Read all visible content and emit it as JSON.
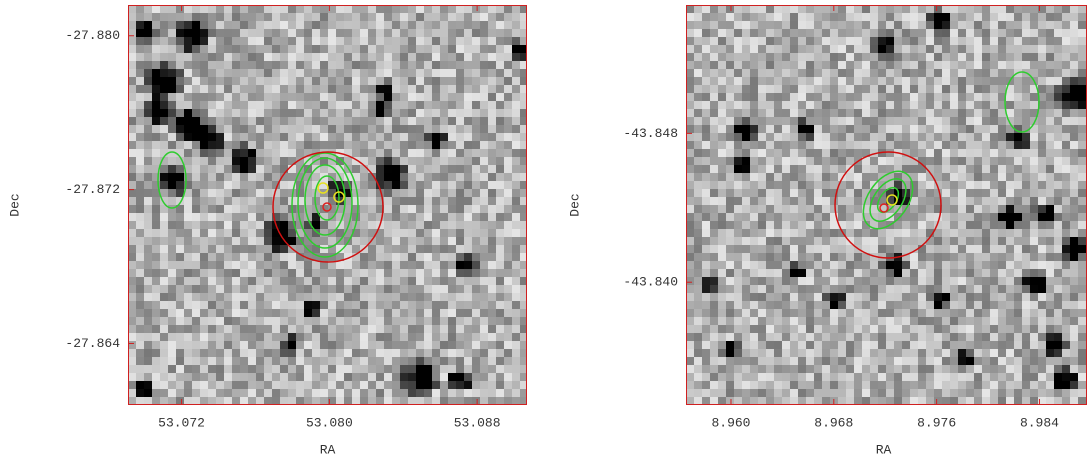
{
  "chart_data": [
    {
      "type": "image",
      "xlabel": "RA",
      "ylabel": "Dec",
      "xlim": [
        53.0691,
        53.0907
      ],
      "ylim": [
        -27.8608,
        -27.8816
      ],
      "xticks": [
        53.072,
        {
          "value": 53.08,
          "label": "53.080"
        },
        53.088
      ],
      "yticks": [
        {
          "value": -27.88,
          "label": "-27.880"
        },
        -27.872,
        -27.864
      ]
    },
    {
      "type": "image",
      "xlabel": "RA",
      "ylabel": "Dec",
      "xlim": [
        8.9565,
        8.9877
      ],
      "ylim": [
        -43.8334,
        -43.8549
      ],
      "xticks": [
        {
          "value": 8.96,
          "label": "8.960"
        },
        8.968,
        8.976,
        8.984
      ],
      "yticks": [
        -43.848,
        {
          "value": -43.84,
          "label": "-43.840"
        }
      ]
    }
  ]
}
